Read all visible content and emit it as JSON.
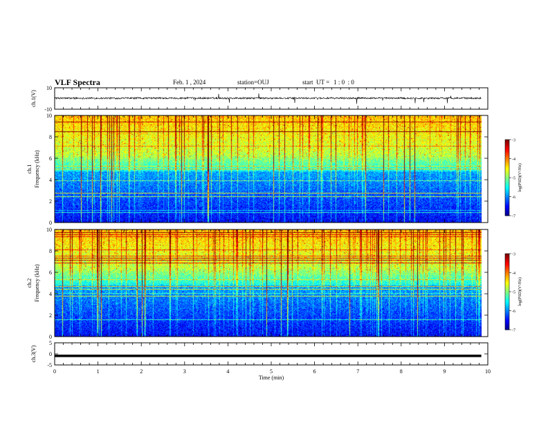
{
  "header": {
    "title": "VLF Spectra",
    "date": "Feb. 1 , 2024",
    "station_label": "station=",
    "station": "OUJ",
    "start_label": "start  UT =",
    "start_time": "1 : 0  : 0"
  },
  "chart_data": [
    {
      "type": "line",
      "id": "ch1-waveform",
      "ylabel": "ch.1(V)",
      "ylim": [
        -10,
        10
      ],
      "y_ticks": [
        "10",
        "-10"
      ],
      "xlim": [
        0,
        10
      ],
      "series_description": "noisy waveform centered near 0.5 V with spikes"
    },
    {
      "type": "heatmap",
      "id": "ch1-spectrogram",
      "ylabel": "ch.1 Frequency (kHz)",
      "ylim": [
        0,
        10
      ],
      "y_ticks": [
        "0",
        "2",
        "4",
        "6",
        "8",
        "10"
      ],
      "xlim": [
        0,
        10
      ],
      "colorbar": {
        "label": "log(PSD)(V²/Hz)",
        "range": [
          -7,
          -3
        ],
        "ticks": [
          "-3",
          "-4",
          "-5",
          "-6",
          "-7"
        ]
      }
    },
    {
      "type": "heatmap",
      "id": "ch2-spectrogram",
      "ylabel": "ch.2 Frequency (kHz)",
      "ylim": [
        0,
        10
      ],
      "y_ticks": [
        "0",
        "2",
        "4",
        "6",
        "8",
        "10"
      ],
      "xlim": [
        0,
        10
      ],
      "colorbar": {
        "label": "log(PSD)(V²/Hz)",
        "range": [
          -7,
          -3
        ],
        "ticks": [
          "-3",
          "-4",
          "-5",
          "-6",
          "-7"
        ]
      }
    },
    {
      "type": "line",
      "id": "ch3-waveform",
      "ylabel": "ch.3(V)",
      "ylim": [
        -5,
        5
      ],
      "y_ticks": [
        "5",
        "0",
        "-5"
      ],
      "xlim": [
        0,
        10
      ],
      "series_description": "flat line near -1 V"
    }
  ],
  "xaxis": {
    "label": "Time  (min)",
    "range": [
      0,
      10
    ],
    "ticks": [
      "0",
      "1",
      "2",
      "3",
      "4",
      "5",
      "6",
      "7",
      "8",
      "9",
      "10"
    ],
    "data_end": 9.85
  },
  "colors": {
    "axis": "#000000",
    "wave": "#000000"
  }
}
